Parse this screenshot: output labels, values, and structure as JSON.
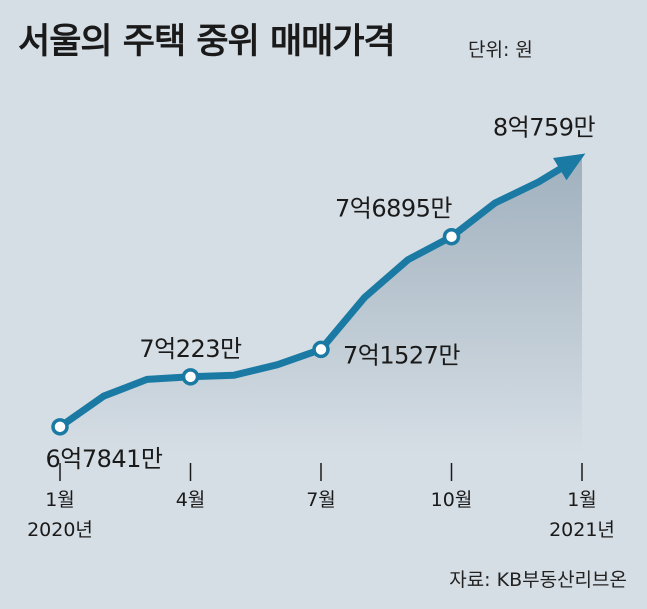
{
  "title": "서울의 주택 중위 매매가격",
  "unit_text": "단위: 원",
  "source": "자료: KB부동산리브온",
  "chart_data": {
    "type": "area",
    "title": "서울의 주택 중위 매매가격",
    "unit": "단위: 원",
    "source": "자료: KB부동산리브온",
    "x": [
      "2020-01",
      "2020-02",
      "2020-03",
      "2020-04",
      "2020-05",
      "2020-06",
      "2020-07",
      "2020-08",
      "2020-09",
      "2020-10",
      "2020-11",
      "2020-12",
      "2021-01"
    ],
    "values": [
      678410000,
      693000000,
      701000000,
      702230000,
      703000000,
      708000000,
      715270000,
      740000000,
      758000000,
      768950000,
      785000000,
      795000000,
      807590000
    ],
    "ylim": [
      665000000,
      815000000
    ],
    "ticks": [
      {
        "x": "2020-01",
        "line1": "1월",
        "line2": "2020년"
      },
      {
        "x": "2020-04",
        "line1": "4월",
        "line2": ""
      },
      {
        "x": "2020-07",
        "line1": "7월",
        "line2": ""
      },
      {
        "x": "2020-10",
        "line1": "10월",
        "line2": ""
      },
      {
        "x": "2021-01",
        "line1": "1월",
        "line2": "2021년"
      }
    ],
    "annotations": [
      {
        "x": "2020-01",
        "label": "6억7841만",
        "position": "below"
      },
      {
        "x": "2020-04",
        "label": "7억223만",
        "position": "above"
      },
      {
        "x": "2020-07",
        "label": "7억1527만",
        "position": "right"
      },
      {
        "x": "2020-10",
        "label": "7억6895만",
        "position": "above-left"
      },
      {
        "x": "2021-01",
        "label": "8억759만",
        "position": "above"
      }
    ],
    "markers": [
      "2020-01",
      "2020-04",
      "2020-07",
      "2020-10"
    ],
    "colors": {
      "line": "#1a7aa3",
      "area_top": "#9fb0bd",
      "background": "#d6dee5",
      "text": "#1a1a1a"
    },
    "grid": false
  }
}
